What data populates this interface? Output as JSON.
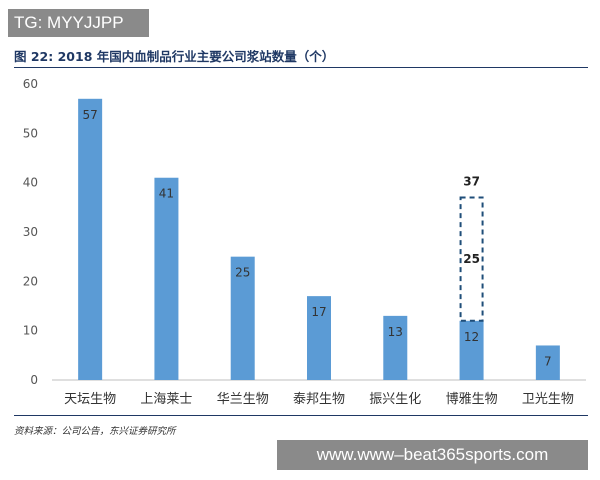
{
  "watermark_top": "TG: MYYJJPP",
  "figure_title": "图 22: 2018 年国内血制品行业主要公司浆站数量（个）",
  "source": "资料来源：公司公告，东兴证券研究所",
  "watermark_bottom": "www.www–beat365sports.com",
  "chart_data": {
    "type": "bar",
    "title": "",
    "xlabel": "",
    "ylabel": "",
    "ylim": [
      0,
      60
    ],
    "yticks": [
      0,
      10,
      20,
      30,
      40,
      50,
      60
    ],
    "categories": [
      "天坛生物",
      "上海莱士",
      "华兰生物",
      "泰邦生物",
      "振兴生化",
      "博雅生物",
      "卫光生物"
    ],
    "values": [
      57,
      41,
      25,
      17,
      13,
      12,
      7
    ],
    "extension": {
      "category": "博雅生物",
      "base": 12,
      "increment": 25,
      "total": 37,
      "style": "dashed-outline"
    },
    "grid": false,
    "legend": "none",
    "colors": {
      "bar": "#5b9bd5",
      "dashed_outline": "#1f4e79",
      "axis": "#bfbfbf"
    }
  }
}
